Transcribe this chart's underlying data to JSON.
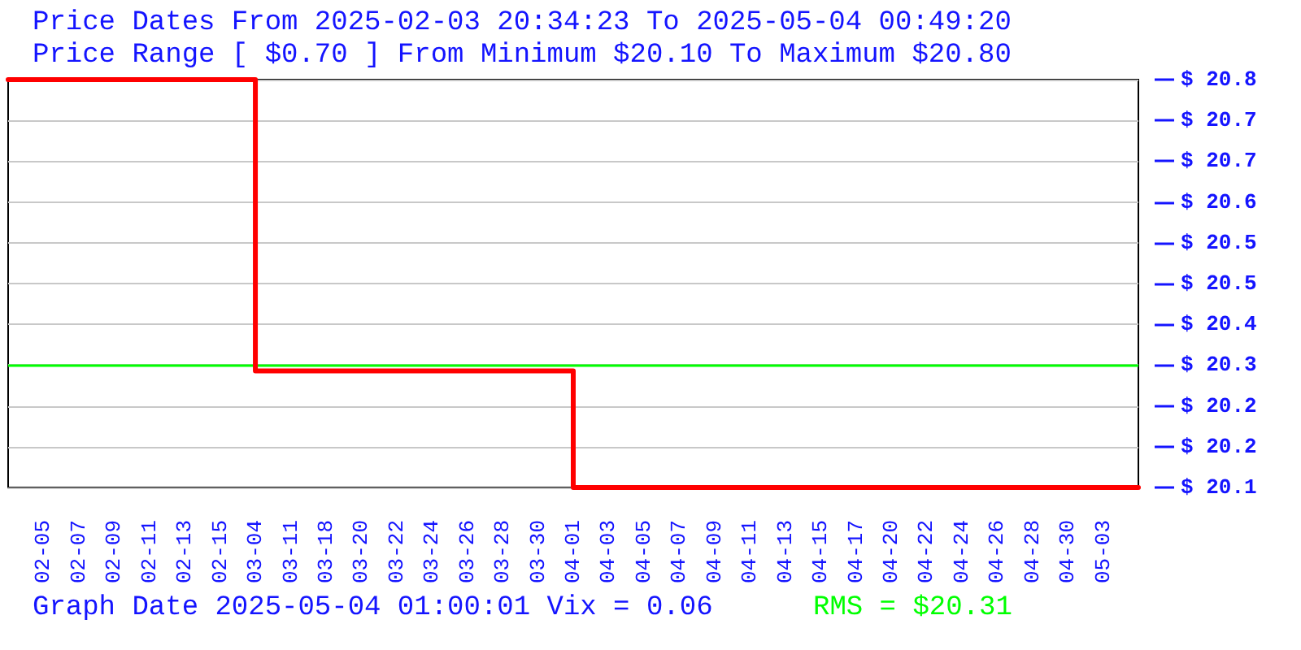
{
  "chart_data": {
    "type": "step",
    "title": "Price Dates From 2025-02-03 20:34:23 To 2025-05-04 00:49:20",
    "subtitle": "Price Range [ $0.70 ] From Minimum $20.10 To Maximum $20.80",
    "annotations": [
      "Graph Date 2025-05-04 01:00:01 Vix = 0.06"
    ],
    "categories": [
      null,
      "02-05",
      "02-07",
      "02-09",
      "02-11",
      "02-13",
      "02-15",
      "03-04",
      "03-11",
      "03-18",
      "03-20",
      "03-22",
      "03-24",
      "03-26",
      "03-28",
      "03-30",
      "04-01",
      "04-03",
      "04-05",
      "04-07",
      "04-09",
      "04-11",
      "04-13",
      "04-15",
      "04-17",
      "04-20",
      "04-22",
      "04-24",
      "04-26",
      "04-28",
      "04-30",
      "05-03",
      null
    ],
    "series": [
      {
        "color": "#ff0000",
        "values": [
          20.8,
          20.8,
          20.8,
          20.8,
          20.8,
          20.8,
          20.8,
          20.3,
          20.3,
          20.3,
          20.3,
          20.3,
          20.3,
          20.3,
          20.3,
          20.3,
          20.1,
          20.1,
          20.1,
          20.1,
          20.1,
          20.1,
          20.1,
          20.1,
          20.1,
          20.1,
          20.1,
          20.1,
          20.1,
          20.1,
          20.1,
          20.1,
          20.1
        ]
      }
    ],
    "ylim": [
      20.1,
      20.8
    ],
    "yticks": [
      {
        "value": 20.1,
        "label": "$ 20.1"
      },
      {
        "value": 20.17,
        "label": "$ 20.2"
      },
      {
        "value": 20.24,
        "label": "$ 20.2"
      },
      {
        "value": 20.31,
        "label": "$ 20.3"
      },
      {
        "value": 20.38,
        "label": "$ 20.4"
      },
      {
        "value": 20.45,
        "label": "$ 20.5"
      },
      {
        "value": 20.52,
        "label": "$ 20.5"
      },
      {
        "value": 20.59,
        "label": "$ 20.6"
      },
      {
        "value": 20.66,
        "label": "$ 20.7"
      },
      {
        "value": 20.73,
        "label": "$ 20.7"
      },
      {
        "value": 20.8,
        "label": "$ 20.8"
      }
    ],
    "ref_lines": [
      {
        "axis": "y",
        "value": 20.31,
        "label": "RMS = $20.31",
        "color": "#00ff00"
      }
    ],
    "grid": "y",
    "marker": "none",
    "line_style": "solid"
  }
}
